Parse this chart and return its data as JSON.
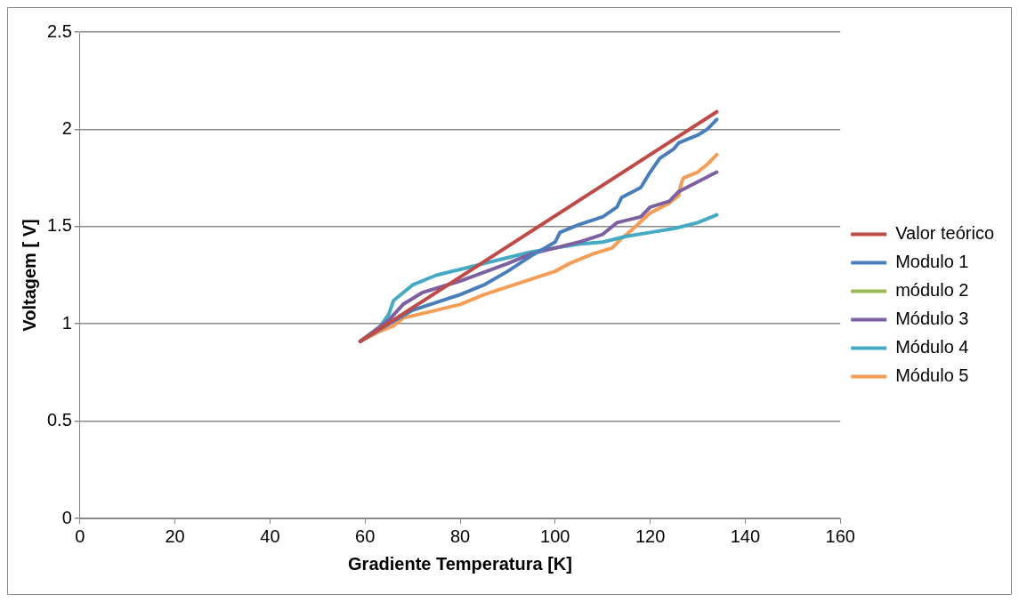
{
  "chart_data": {
    "type": "line",
    "xlabel": "Gradiente Temperatura [K]",
    "ylabel": "Voltagem [ V]",
    "xlim": [
      0,
      160
    ],
    "xticks": [
      0,
      20,
      40,
      60,
      80,
      100,
      120,
      140,
      160
    ],
    "ylim": [
      0,
      2.5
    ],
    "yticks": [
      0,
      0.5,
      1,
      1.5,
      2,
      2.5
    ],
    "grid": "y",
    "legend": "right",
    "marker": "none",
    "line_style": "solid",
    "series": [
      {
        "name": "Valor teórico",
        "color": "#be4b48",
        "x": [
          59,
          134
        ],
        "values": [
          0.91,
          2.09
        ]
      },
      {
        "name": "Modulo 1",
        "color": "#4a7ebb",
        "x": [
          59,
          65,
          70,
          75,
          80,
          85,
          90,
          95,
          100,
          101,
          105,
          110,
          113,
          114,
          118,
          120,
          122,
          125,
          126,
          130,
          132,
          134
        ],
        "values": [
          0.91,
          1.0,
          1.07,
          1.11,
          1.15,
          1.2,
          1.27,
          1.35,
          1.42,
          1.47,
          1.51,
          1.55,
          1.6,
          1.65,
          1.7,
          1.78,
          1.85,
          1.9,
          1.93,
          1.97,
          2.0,
          2.05
        ]
      },
      {
        "name": "módulo 2",
        "color": "#98b954"
      },
      {
        "name": "Módulo 3",
        "color": "#7d60a0",
        "x": [
          59,
          65,
          68,
          72,
          80,
          90,
          95,
          100,
          105,
          110,
          113,
          118,
          120,
          124,
          126,
          130,
          134
        ],
        "values": [
          0.91,
          1.02,
          1.1,
          1.16,
          1.22,
          1.31,
          1.36,
          1.39,
          1.42,
          1.46,
          1.52,
          1.55,
          1.6,
          1.63,
          1.68,
          1.73,
          1.78
        ]
      },
      {
        "name": "Módulo 4",
        "color": "#46aac5",
        "x": [
          59,
          63,
          65,
          66,
          70,
          75,
          80,
          85,
          90,
          95,
          100,
          105,
          110,
          115,
          120,
          125,
          130,
          134
        ],
        "values": [
          0.91,
          0.98,
          1.05,
          1.12,
          1.2,
          1.25,
          1.28,
          1.31,
          1.34,
          1.37,
          1.39,
          1.41,
          1.42,
          1.45,
          1.47,
          1.49,
          1.52,
          1.56
        ]
      },
      {
        "name": "Módulo 5",
        "color": "#f59d56",
        "x": [
          59,
          63,
          66,
          68,
          75,
          80,
          85,
          90,
          95,
          100,
          103,
          108,
          112,
          114,
          116,
          120,
          124,
          126,
          126.5,
          127,
          130,
          132,
          134
        ],
        "values": [
          0.91,
          0.96,
          0.99,
          1.03,
          1.07,
          1.1,
          1.15,
          1.19,
          1.23,
          1.27,
          1.31,
          1.36,
          1.39,
          1.44,
          1.48,
          1.57,
          1.62,
          1.66,
          1.72,
          1.75,
          1.78,
          1.82,
          1.87
        ]
      }
    ]
  }
}
